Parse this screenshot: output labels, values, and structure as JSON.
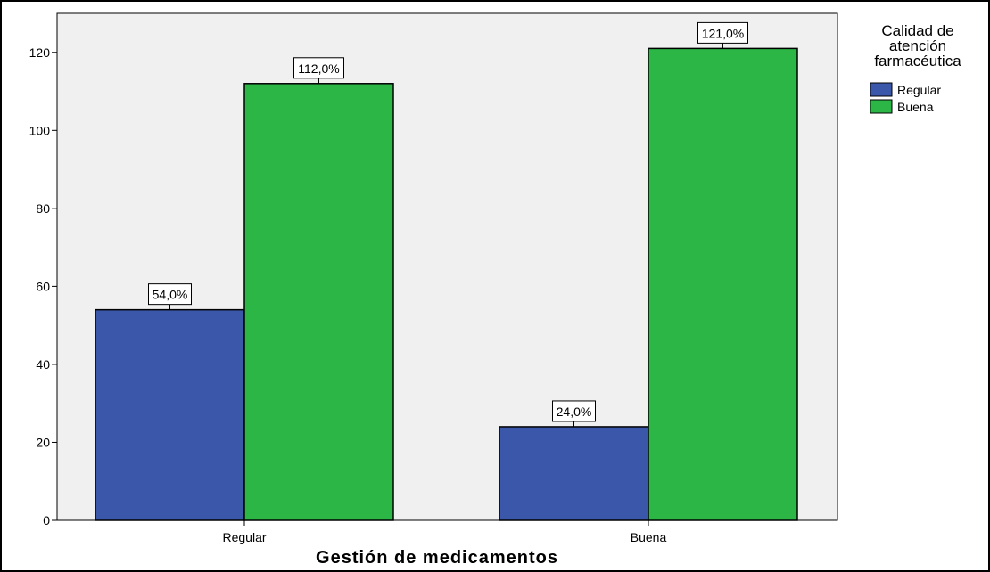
{
  "chart_data": {
    "type": "bar",
    "title": "",
    "xlabel": "Gestión de medicamentos",
    "ylabel": "",
    "categories": [
      "Regular",
      "Buena"
    ],
    "series": [
      {
        "name": "Regular",
        "color": "#3b57aa",
        "values": [
          54,
          24
        ],
        "labels": [
          "54,0%",
          "24,0%"
        ]
      },
      {
        "name": "Buena",
        "color": "#2bb646",
        "values": [
          112,
          121
        ],
        "labels": [
          "112,0%",
          "121,0%"
        ]
      }
    ],
    "ylim": [
      0,
      130
    ],
    "yticks": [
      0,
      20,
      40,
      60,
      80,
      100,
      120
    ],
    "ytick_labels": [
      "0",
      "20",
      "40",
      "60",
      "80",
      "100",
      "120"
    ],
    "grid": false,
    "plot_background": "#f0f0f0",
    "legend": {
      "title_lines": [
        "Calidad de",
        "atención",
        "farmacéutica"
      ],
      "placement": "right"
    }
  }
}
